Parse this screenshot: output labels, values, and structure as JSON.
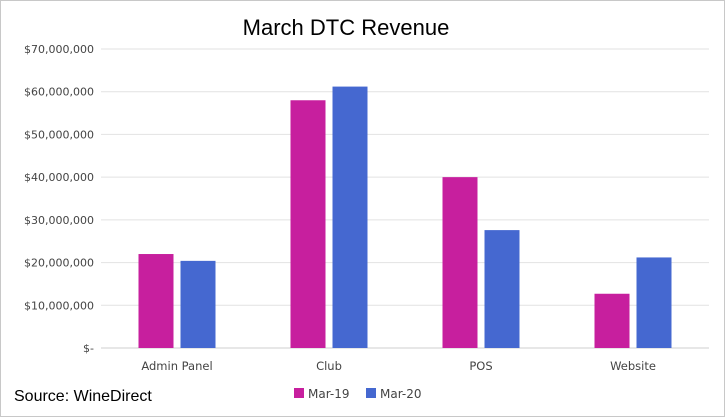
{
  "chart_data": {
    "type": "bar",
    "title": "March DTC Revenue",
    "categories": [
      "Admin Panel",
      "Club",
      "POS",
      "Website"
    ],
    "series": [
      {
        "name": "Mar-19",
        "color": "#C71F9E",
        "values": [
          22000000,
          58000000,
          40000000,
          12700000
        ]
      },
      {
        "name": "Mar-20",
        "color": "#4568D0",
        "values": [
          20400000,
          61200000,
          27600000,
          21200000
        ]
      }
    ],
    "ylim": [
      0,
      70000000
    ],
    "yticks": [
      0,
      10000000,
      20000000,
      30000000,
      40000000,
      50000000,
      60000000,
      70000000
    ],
    "ytick_labels": [
      "$-",
      "$10,000,000",
      "$20,000,000",
      "$30,000,000",
      "$40,000,000",
      "$50,000,000",
      "$60,000,000",
      "$70,000,000"
    ],
    "grid": true,
    "legend_position": "bottom"
  },
  "source": "Source: WineDirect",
  "colors": {
    "gridline": "#e2e2e2",
    "axis": "#cfcfcf"
  }
}
